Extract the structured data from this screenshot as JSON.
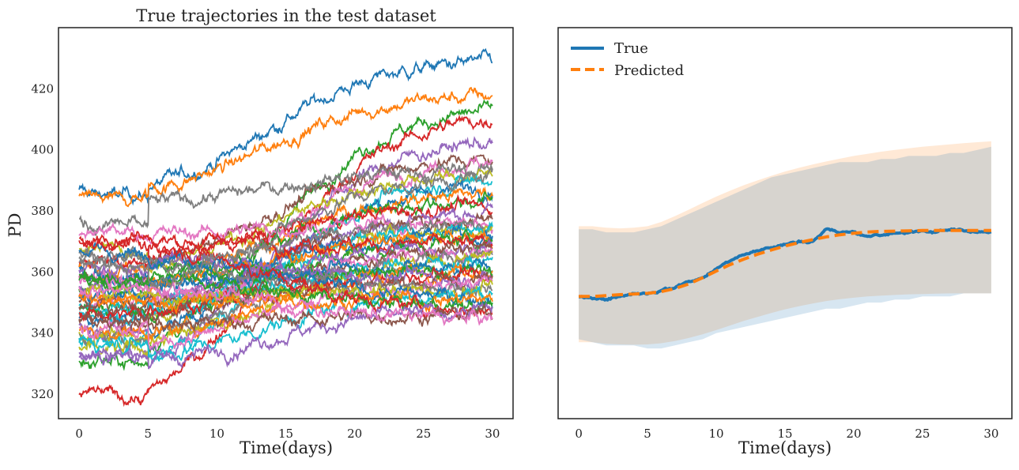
{
  "chart_data": [
    {
      "type": "line",
      "title": "True trajectories in the test dataset",
      "xlabel": "Time(days)",
      "ylabel": "PD",
      "xlim": [
        -1.5,
        31.5
      ],
      "ylim": [
        312,
        440
      ],
      "xticks": [
        0,
        5,
        10,
        15,
        20,
        25,
        30
      ],
      "yticks": [
        320,
        340,
        360,
        380,
        400,
        420
      ],
      "grid": false,
      "series_count": 48,
      "series_colors": [
        "#1f77b4",
        "#ff7f0e",
        "#2ca02c",
        "#d62728",
        "#9467bd",
        "#8c564b",
        "#e377c2",
        "#7f7f7f",
        "#bcbd22",
        "#17becf"
      ],
      "starts": [
        386,
        384,
        331,
        320,
        333,
        358,
        352,
        376,
        368,
        338,
        345,
        362,
        355,
        370,
        342,
        350,
        373,
        366,
        340,
        346,
        360,
        352,
        348,
        364,
        356,
        344,
        358,
        339,
        335,
        350,
        353,
        341,
        357,
        347,
        361,
        349,
        343,
        365,
        354,
        337,
        367,
        351,
        359,
        371,
        334,
        345,
        355,
        362
      ],
      "ends": [
        428,
        417,
        411,
        408,
        401,
        396,
        395,
        393,
        391,
        389,
        387,
        385,
        383,
        381,
        379,
        377,
        376,
        375,
        374,
        373,
        372,
        371,
        370,
        369,
        368,
        367,
        366,
        365,
        364,
        363,
        362,
        361,
        360,
        359,
        358,
        357,
        356,
        355,
        354,
        353,
        352,
        351,
        349,
        348,
        347,
        346,
        345,
        390
      ]
    },
    {
      "type": "line",
      "title": "",
      "xlabel": "Time(days)",
      "ylabel": "",
      "xlim": [
        -1.5,
        31.5
      ],
      "ylim": [
        312,
        440
      ],
      "xticks": [
        0,
        5,
        10,
        15,
        20,
        25,
        30
      ],
      "legend": {
        "position": "top-left",
        "entries": [
          "True",
          "Predicted"
        ]
      },
      "series": [
        {
          "name": "True",
          "color": "#1f77b4",
          "style": "solid",
          "x": [
            0,
            1,
            2,
            3,
            4,
            5,
            6,
            7,
            8,
            9,
            10,
            11,
            12,
            13,
            14,
            15,
            16,
            17,
            18,
            19,
            20,
            21,
            22,
            23,
            24,
            25,
            26,
            27,
            28,
            29,
            30
          ],
          "y": [
            352,
            352,
            351,
            352,
            353,
            353,
            354,
            355,
            357,
            358,
            361,
            364,
            366,
            367,
            368,
            369,
            370,
            370,
            374,
            373,
            373,
            372,
            372,
            373,
            373,
            373,
            373,
            374,
            374,
            373,
            373
          ],
          "band_lower": [
            338,
            337,
            336,
            336,
            336,
            335,
            335,
            336,
            337,
            338,
            340,
            341,
            342,
            343,
            344,
            345,
            346,
            347,
            348,
            348,
            349,
            350,
            350,
            351,
            351,
            352,
            352,
            352,
            353,
            353,
            353
          ],
          "band_upper": [
            374,
            374,
            373,
            373,
            373,
            374,
            375,
            377,
            379,
            381,
            383,
            385,
            387,
            389,
            391,
            392,
            393,
            394,
            395,
            396,
            396,
            396,
            397,
            397,
            398,
            398,
            398,
            399,
            399,
            400,
            401
          ]
        },
        {
          "name": "Predicted",
          "color": "#ff7f0e",
          "style": "dashed",
          "x": [
            0,
            1,
            2,
            3,
            4,
            5,
            6,
            7,
            8,
            9,
            10,
            11,
            12,
            13,
            14,
            15,
            16,
            17,
            18,
            19,
            20,
            21,
            22,
            23,
            24,
            25,
            26,
            27,
            28,
            29,
            30
          ],
          "y": [
            352,
            352,
            352.3,
            352.6,
            352.8,
            353,
            353.6,
            354.6,
            356.1,
            358.1,
            360.3,
            362.4,
            364.2,
            365.8,
            367.2,
            368.5,
            369.6,
            370.6,
            371.5,
            372.2,
            372.7,
            373.1,
            373.3,
            373.4,
            373.5,
            373.6,
            373.6,
            373.6,
            373.6,
            373.6,
            373.6
          ],
          "band_lower": [
            337,
            337,
            336.5,
            336.3,
            336.2,
            336.3,
            336.7,
            337.4,
            338.4,
            339.6,
            341,
            342.5,
            344,
            345.3,
            346.6,
            347.8,
            348.8,
            349.7,
            350.5,
            351.1,
            351.6,
            352,
            352.3,
            352.5,
            352.7,
            352.8,
            352.9,
            353,
            353,
            353,
            353
          ],
          "band_upper": [
            375,
            375,
            374.5,
            374.3,
            374.5,
            375,
            376.4,
            378.3,
            380.4,
            382.6,
            384.7,
            386.6,
            388.4,
            390,
            391.5,
            392.9,
            394.1,
            395.2,
            396.2,
            397.1,
            398,
            398.7,
            399.4,
            400,
            400.5,
            401,
            401.4,
            401.8,
            402.2,
            402.5,
            402.8
          ]
        }
      ]
    }
  ]
}
